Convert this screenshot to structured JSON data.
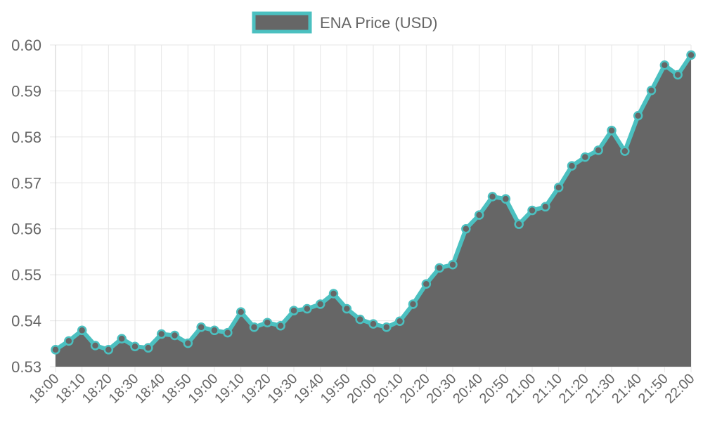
{
  "chart_data": {
    "type": "area",
    "title": "",
    "xlabel": "",
    "ylabel": "",
    "x": [
      "18:00",
      "18:05",
      "18:10",
      "18:15",
      "18:20",
      "18:25",
      "18:30",
      "18:35",
      "18:40",
      "18:45",
      "18:50",
      "18:55",
      "19:00",
      "19:05",
      "19:10",
      "19:15",
      "19:20",
      "19:25",
      "19:30",
      "19:35",
      "19:40",
      "19:45",
      "19:50",
      "19:55",
      "20:00",
      "20:05",
      "20:10",
      "20:15",
      "20:20",
      "20:25",
      "20:30",
      "20:35",
      "20:40",
      "20:45",
      "20:50",
      "20:55",
      "21:00",
      "21:05",
      "21:10",
      "21:15",
      "21:20",
      "21:25",
      "21:30",
      "21:35",
      "21:40",
      "21:45",
      "21:50",
      "21:55",
      "22:00"
    ],
    "x_tick_labels": [
      "18:00",
      "18:10",
      "18:20",
      "18:30",
      "18:40",
      "18:50",
      "19:00",
      "19:10",
      "19:20",
      "19:30",
      "19:40",
      "19:50",
      "20:00",
      "20:10",
      "20:20",
      "20:30",
      "20:40",
      "20:50",
      "21:00",
      "21:10",
      "21:20",
      "21:30",
      "21:40",
      "21:50",
      "22:00"
    ],
    "y_tick_labels": [
      "0.60",
      "0.59",
      "0.58",
      "0.57",
      "0.56",
      "0.55",
      "0.54",
      "0.53"
    ],
    "ylim": [
      0.53,
      0.6
    ],
    "grid": true,
    "legend_position": "top-center",
    "series": [
      {
        "name": "ENA Price (USD)",
        "fill_color": "#666666",
        "line_color": "#4bc0c0",
        "values": [
          0.5337,
          0.5356,
          0.5379,
          0.5346,
          0.5337,
          0.5361,
          0.5344,
          0.5341,
          0.5371,
          0.5368,
          0.5351,
          0.5386,
          0.5379,
          0.5374,
          0.5419,
          0.5386,
          0.5396,
          0.5389,
          0.5422,
          0.5426,
          0.5436,
          0.5459,
          0.5426,
          0.5403,
          0.5393,
          0.5386,
          0.5399,
          0.5436,
          0.548,
          0.5515,
          0.5522,
          0.56,
          0.563,
          0.567,
          0.5665,
          0.561,
          0.564,
          0.5648,
          0.569,
          0.5737,
          0.5756,
          0.5771,
          0.5814,
          0.5769,
          0.5846,
          0.5901,
          0.5956,
          0.5935,
          0.5978
        ]
      }
    ]
  }
}
